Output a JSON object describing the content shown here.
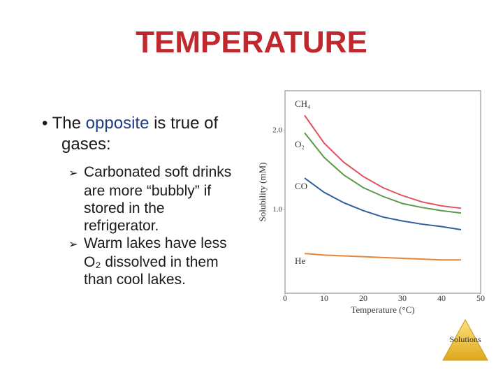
{
  "slide": {
    "title": "TEMPERATURE",
    "bullet_start": "The",
    "bullet_highlight": "opposite",
    "bullet_end": "is true of gases:",
    "sub_bullets": [
      "Carbonated soft drinks are more “bubbly” if stored in the refrigerator.",
      "Warm lakes have less O₂ dissolved in them than cool lakes."
    ],
    "logo": "Solutions"
  },
  "chart_data": {
    "type": "line",
    "xlabel": "Temperature (°C)",
    "ylabel": "Solubility (mM)",
    "x": [
      5,
      10,
      15,
      20,
      25,
      30,
      35,
      40,
      45
    ],
    "xlim": [
      0,
      50
    ],
    "xticks": [
      0,
      10,
      20,
      30,
      40,
      50
    ],
    "ylim": [
      -0.05,
      2.5
    ],
    "yticks": [
      {
        "value": 1,
        "label": "1.0"
      },
      {
        "value": 2,
        "label": "2.0"
      }
    ],
    "series": [
      {
        "name": "CH₄",
        "color": "#e05260",
        "values": [
          2.19,
          1.84,
          1.6,
          1.42,
          1.28,
          1.18,
          1.1,
          1.05,
          1.02
        ]
      },
      {
        "name": "O₂",
        "color": "#5a9a4a",
        "values": [
          1.97,
          1.66,
          1.44,
          1.28,
          1.17,
          1.08,
          1.03,
          0.99,
          0.96
        ]
      },
      {
        "name": "CO",
        "color": "#2f5f9a",
        "values": [
          1.4,
          1.22,
          1.09,
          0.99,
          0.91,
          0.86,
          0.82,
          0.79,
          0.75
        ]
      },
      {
        "name": "He",
        "color": "#e8843a",
        "values": [
          0.45,
          0.43,
          0.42,
          0.41,
          0.4,
          0.39,
          0.38,
          0.37,
          0.37
        ]
      }
    ]
  }
}
